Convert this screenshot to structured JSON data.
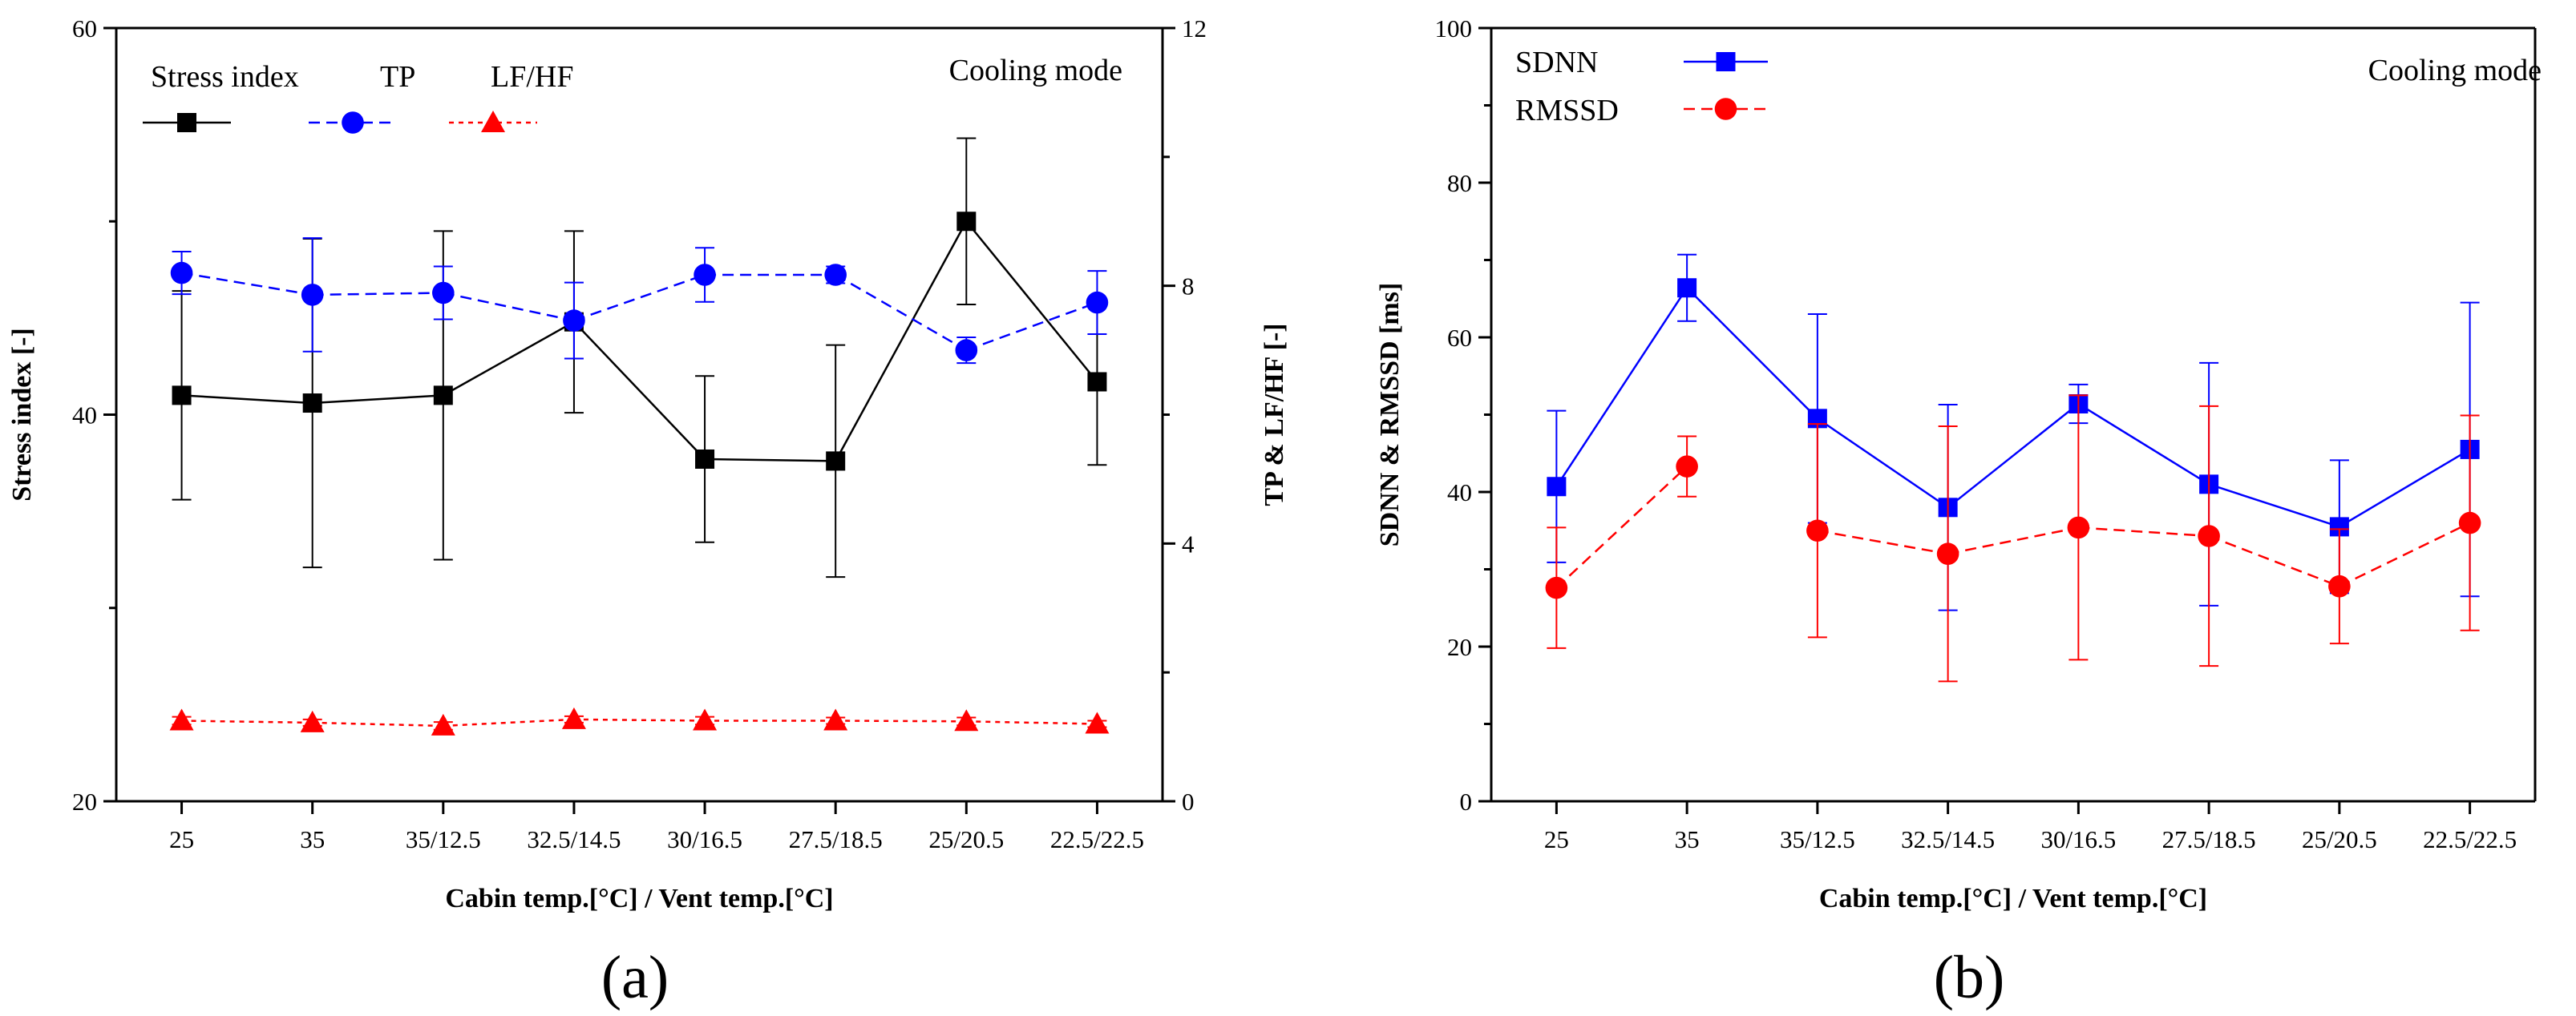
{
  "chart_data": [
    {
      "type": "line",
      "panel_label": "(a)",
      "annotation": "Cooling mode",
      "categories": [
        "25",
        "35",
        "35/12.5",
        "32.5/14.5",
        "30/16.5",
        "27.5/18.5",
        "25/20.5",
        "22.5/22.5"
      ],
      "xlabel": "Cabin temp.[°C] / Vent temp.[°C]",
      "ylabel": "Stress index [-]",
      "ylim": [
        20,
        60
      ],
      "yticks": [
        "20",
        "40",
        "60"
      ],
      "y2label": "TP & LF/HF [-]",
      "y2lim": [
        0,
        12
      ],
      "y2ticks": [
        "0",
        "4",
        "8",
        "12"
      ],
      "series": [
        {
          "name": "Stress index",
          "axis": "left",
          "color": "#000000",
          "marker": "square",
          "dash": "solid",
          "values": [
            41.0,
            40.6,
            41.0,
            44.8,
            37.7,
            37.6,
            50.0,
            41.7
          ],
          "errors": [
            5.4,
            8.5,
            8.5,
            4.7,
            4.3,
            6.0,
            4.3,
            4.3
          ]
        },
        {
          "name": "TP",
          "axis": "right",
          "color": "#0000ff",
          "marker": "circle",
          "dash": "dashed",
          "values": [
            8.2,
            7.86,
            7.89,
            7.46,
            8.17,
            8.17,
            7.0,
            7.74
          ],
          "errors": [
            0.33,
            0.88,
            0.41,
            0.59,
            0.42,
            0.13,
            0.2,
            0.49
          ]
        },
        {
          "name": "LF/HF",
          "axis": "right",
          "color": "#ff0000",
          "marker": "triangle",
          "dash": "dotted",
          "values": [
            1.25,
            1.22,
            1.17,
            1.27,
            1.25,
            1.25,
            1.24,
            1.2
          ],
          "errors": [
            0.06,
            0.05,
            0.06,
            0.05,
            0.06,
            0.05,
            0.06,
            0.05
          ]
        }
      ]
    },
    {
      "type": "line",
      "panel_label": "(b)",
      "annotation": "Cooling mode",
      "categories": [
        "25",
        "35",
        "35/12.5",
        "32.5/14.5",
        "30/16.5",
        "27.5/18.5",
        "25/20.5",
        "22.5/22.5"
      ],
      "xlabel": "Cabin temp.[°C] / Vent temp.[°C]",
      "ylabel": "SDNN & RMSSD [ms]",
      "ylim": [
        0,
        100
      ],
      "yticks": [
        "0",
        "20",
        "40",
        "60",
        "80",
        "100"
      ],
      "series": [
        {
          "name": "SDNN",
          "color": "#0000ff",
          "marker": "square",
          "dash": "solid",
          "values": [
            40.7,
            66.4,
            49.5,
            38.0,
            51.4,
            41.0,
            35.5,
            45.5
          ],
          "errors": [
            9.8,
            4.3,
            13.5,
            13.3,
            2.5,
            15.7,
            8.6,
            19.0
          ]
        },
        {
          "name": "RMSSD",
          "color": "#ff0000",
          "marker": "circle",
          "dash": "dashed",
          "values": [
            27.6,
            43.3,
            35.0,
            32.0,
            35.4,
            34.3,
            27.8,
            36.0
          ],
          "errors": [
            7.8,
            3.9,
            13.8,
            16.5,
            17.1,
            16.8,
            7.4,
            13.9
          ]
        }
      ]
    }
  ]
}
